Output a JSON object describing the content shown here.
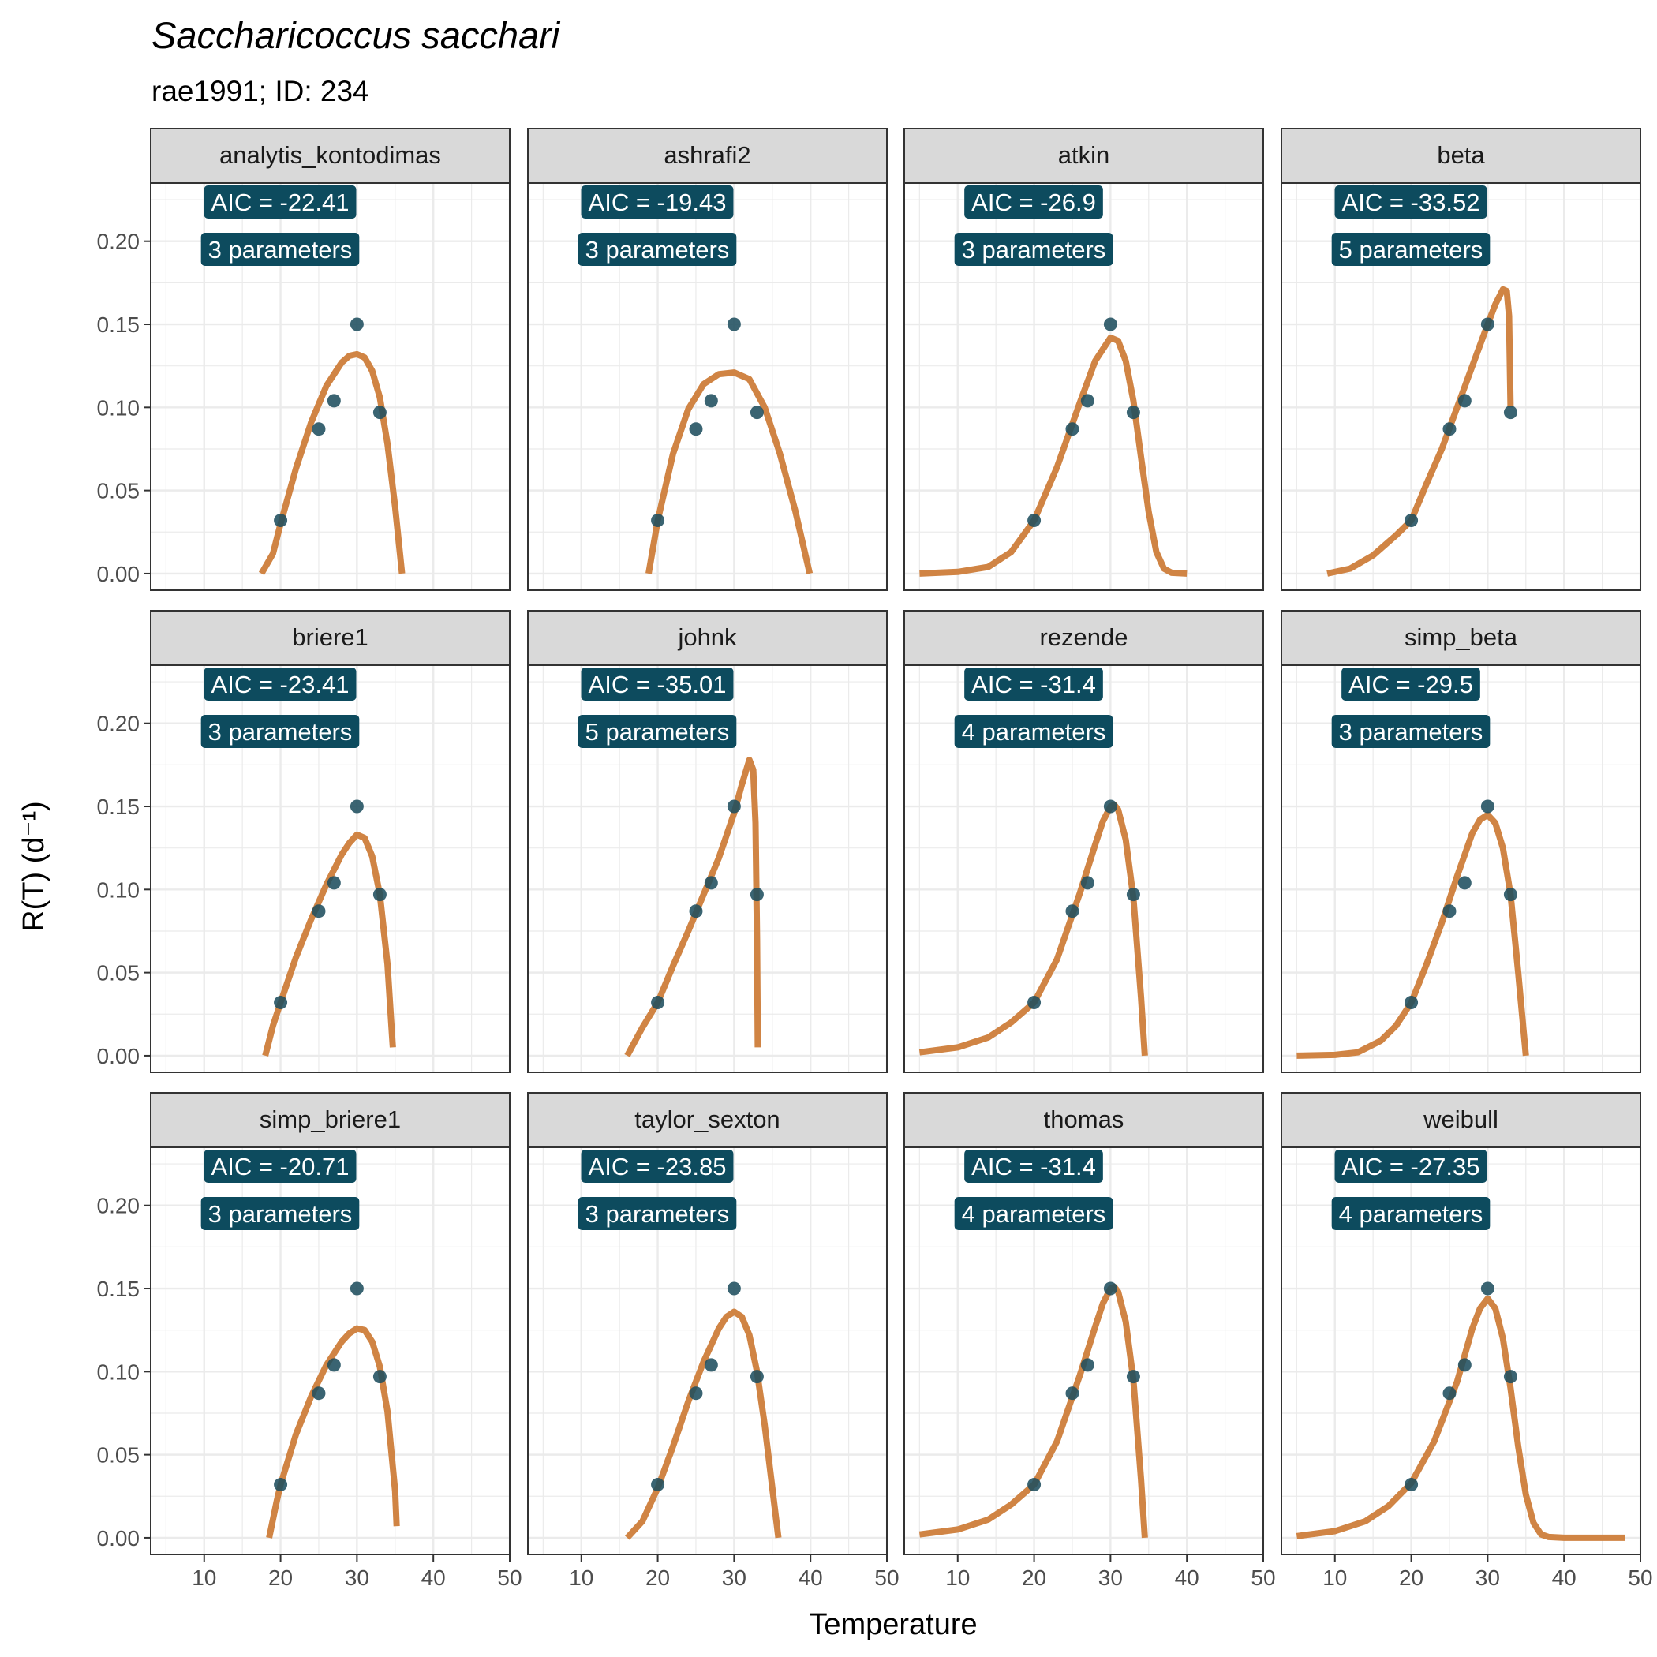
{
  "title": "Saccharicoccus sacchari",
  "subtitle": "rae1991; ID: 234",
  "xlabel": "Temperature",
  "ylabel": "R(T) (d⁻¹)",
  "colors": {
    "curve": "#D08444",
    "points": "#1F4E5F",
    "label_bg": "#0D4B5E",
    "label_text": "#FFFFFF",
    "strip_bg": "#D9D9D9",
    "grid": "#EBEBEB"
  },
  "chart_data": {
    "type": "line",
    "layout": "facet-grid",
    "xlim": [
      3,
      50
    ],
    "ylim": [
      -0.01,
      0.235
    ],
    "x_ticks": [
      10,
      20,
      30,
      40,
      50
    ],
    "x_tick_labels": [
      "10",
      "20",
      "30",
      "40",
      "50"
    ],
    "y_ticks": [
      0,
      0.05,
      0.1,
      0.15,
      0.2
    ],
    "y_tick_labels": [
      "0.00",
      "0.05",
      "0.10",
      "0.15",
      "0.20"
    ],
    "grid": true,
    "observations": {
      "x": [
        20,
        25,
        27,
        30,
        33
      ],
      "y": [
        0.032,
        0.087,
        0.104,
        0.15,
        0.097
      ]
    },
    "panels": [
      {
        "name": "analytis_kontodimas",
        "aic_label": "AIC = -22.41",
        "params_label": "3 parameters",
        "x": [
          17.5,
          19,
          20,
          22,
          24,
          26,
          28,
          29,
          30,
          31,
          32,
          33,
          34,
          35,
          35.9
        ],
        "y": [
          0,
          0.012,
          0.03,
          0.063,
          0.091,
          0.113,
          0.127,
          0.131,
          0.132,
          0.13,
          0.122,
          0.106,
          0.078,
          0.04,
          0
        ]
      },
      {
        "name": "ashrafi2",
        "aic_label": "AIC = -19.43",
        "params_label": "3 parameters",
        "x": [
          18.8,
          20,
          22,
          24,
          26,
          28,
          30,
          32,
          34,
          36,
          38,
          39.9
        ],
        "y": [
          0,
          0.032,
          0.072,
          0.099,
          0.114,
          0.12,
          0.121,
          0.117,
          0.1,
          0.072,
          0.038,
          0
        ]
      },
      {
        "name": "atkin",
        "aic_label": "AIC = -26.9",
        "params_label": "3 parameters",
        "x": [
          5,
          10,
          14,
          17,
          20,
          23,
          26,
          28,
          30,
          31,
          32,
          33,
          34,
          35,
          36,
          37,
          38,
          40
        ],
        "y": [
          0,
          0.001,
          0.004,
          0.013,
          0.032,
          0.064,
          0.103,
          0.128,
          0.142,
          0.14,
          0.128,
          0.104,
          0.07,
          0.037,
          0.013,
          0.003,
          0.0005,
          0
        ]
      },
      {
        "name": "beta",
        "aic_label": "AIC = -33.52",
        "params_label": "5 parameters",
        "x": [
          9,
          12,
          15,
          18,
          20,
          22,
          24,
          26,
          28,
          30,
          31,
          32,
          32.5,
          32.8,
          33
        ],
        "y": [
          0,
          0.003,
          0.011,
          0.023,
          0.032,
          0.054,
          0.075,
          0.1,
          0.125,
          0.15,
          0.162,
          0.171,
          0.17,
          0.155,
          0.1
        ]
      },
      {
        "name": "briere1",
        "aic_label": "AIC = -23.41",
        "params_label": "3 parameters",
        "x": [
          18,
          19,
          20,
          22,
          24,
          26,
          28,
          29,
          30,
          31,
          32,
          33,
          34,
          34.6,
          34.7
        ],
        "y": [
          0,
          0.018,
          0.032,
          0.059,
          0.082,
          0.103,
          0.121,
          0.128,
          0.133,
          0.131,
          0.12,
          0.097,
          0.055,
          0.012,
          0.005
        ]
      },
      {
        "name": "johnk",
        "aic_label": "AIC = -35.01",
        "params_label": "5 parameters",
        "x": [
          16,
          18,
          20,
          22,
          24,
          26,
          28,
          30,
          31,
          32,
          32.5,
          32.8,
          33,
          33.1
        ],
        "y": [
          0,
          0.017,
          0.032,
          0.054,
          0.075,
          0.097,
          0.119,
          0.146,
          0.163,
          0.178,
          0.172,
          0.14,
          0.07,
          0.005
        ]
      },
      {
        "name": "rezende",
        "aic_label": "AIC = -31.4",
        "params_label": "4 parameters",
        "x": [
          5,
          10,
          14,
          17,
          20,
          23,
          26,
          28,
          29,
          30,
          30.5,
          31,
          32,
          33,
          34,
          34.5
        ],
        "y": [
          0.002,
          0.005,
          0.011,
          0.02,
          0.032,
          0.058,
          0.098,
          0.127,
          0.141,
          0.15,
          0.151,
          0.148,
          0.13,
          0.095,
          0.035,
          0
        ]
      },
      {
        "name": "simp_beta",
        "aic_label": "AIC = -29.5",
        "params_label": "3 parameters",
        "x": [
          5,
          10,
          13,
          16,
          18,
          20,
          22,
          24,
          26,
          28,
          29,
          30,
          31,
          32,
          33,
          34,
          35
        ],
        "y": [
          0,
          0.0005,
          0.002,
          0.009,
          0.018,
          0.032,
          0.055,
          0.08,
          0.108,
          0.134,
          0.142,
          0.145,
          0.14,
          0.125,
          0.097,
          0.05,
          0
        ]
      },
      {
        "name": "simp_briere1",
        "aic_label": "AIC = -20.71",
        "params_label": "3 parameters",
        "x": [
          18.5,
          19.5,
          20,
          22,
          24,
          26,
          28,
          29,
          30,
          31,
          32,
          33,
          34,
          35,
          35.2
        ],
        "y": [
          0,
          0.022,
          0.032,
          0.062,
          0.085,
          0.104,
          0.118,
          0.123,
          0.126,
          0.125,
          0.118,
          0.103,
          0.076,
          0.028,
          0.007
        ]
      },
      {
        "name": "taylor_sexton",
        "aic_label": "AIC = -23.85",
        "params_label": "3 parameters",
        "x": [
          16,
          18,
          20,
          22,
          24,
          26,
          28,
          29,
          30,
          31,
          32,
          33,
          34,
          35,
          35.8
        ],
        "y": [
          0,
          0.01,
          0.03,
          0.055,
          0.082,
          0.106,
          0.126,
          0.133,
          0.136,
          0.133,
          0.122,
          0.1,
          0.068,
          0.03,
          0
        ]
      },
      {
        "name": "thomas",
        "aic_label": "AIC = -31.4",
        "params_label": "4 parameters",
        "x": [
          5,
          10,
          14,
          17,
          20,
          23,
          26,
          28,
          29,
          30,
          30.5,
          31,
          32,
          33,
          34,
          34.5
        ],
        "y": [
          0.002,
          0.005,
          0.011,
          0.02,
          0.032,
          0.058,
          0.098,
          0.127,
          0.141,
          0.15,
          0.151,
          0.148,
          0.13,
          0.095,
          0.035,
          0
        ]
      },
      {
        "name": "weibull",
        "aic_label": "AIC = -27.35",
        "params_label": "4 parameters",
        "x": [
          5,
          10,
          14,
          17,
          20,
          23,
          26,
          28,
          29,
          30,
          31,
          32,
          33,
          34,
          35,
          36,
          37,
          38,
          40,
          44,
          48
        ],
        "y": [
          0.001,
          0.004,
          0.01,
          0.019,
          0.033,
          0.058,
          0.094,
          0.126,
          0.138,
          0.144,
          0.138,
          0.12,
          0.09,
          0.055,
          0.026,
          0.009,
          0.002,
          0.0005,
          0,
          0,
          0
        ]
      }
    ]
  }
}
